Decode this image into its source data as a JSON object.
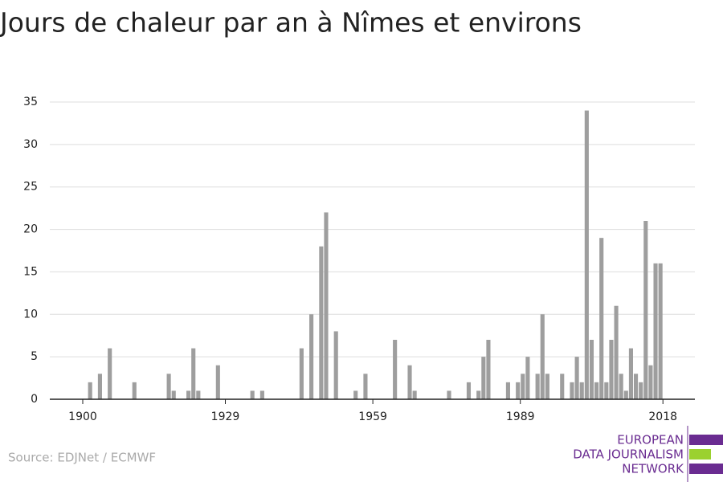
{
  "chart_data": {
    "type": "bar",
    "title": "Jours de chaleur par an à Nîmes et environs",
    "source": "Source: EDJNet / ECMWF",
    "logo": [
      "EUROPEAN",
      "DATA JOURNALISM",
      "NETWORK"
    ],
    "x": [
      1901,
      1903,
      1905,
      1910,
      1917,
      1918,
      1921,
      1922,
      1923,
      1927,
      1934,
      1936,
      1944,
      1946,
      1948,
      1949,
      1951,
      1955,
      1957,
      1963,
      1966,
      1967,
      1974,
      1978,
      1980,
      1981,
      1982,
      1986,
      1988,
      1989,
      1990,
      1992,
      1993,
      1994,
      1997,
      1999,
      2000,
      2001,
      2002,
      2003,
      2004,
      2005,
      2006,
      2007,
      2008,
      2009,
      2010,
      2011,
      2012,
      2013,
      2014,
      2015,
      2016,
      2017
    ],
    "values": [
      2,
      3,
      6,
      2,
      3,
      1,
      1,
      6,
      1,
      4,
      1,
      1,
      6,
      10,
      18,
      22,
      8,
      1,
      3,
      7,
      4,
      1,
      1,
      2,
      1,
      5,
      7,
      2,
      2,
      3,
      5,
      3,
      10,
      3,
      3,
      2,
      5,
      2,
      34,
      7,
      2,
      19,
      2,
      7,
      11,
      3,
      1,
      6,
      3,
      2,
      21,
      4,
      16,
      16
    ],
    "color": "#9e9e9e",
    "xlim": [
      1893.3,
      2024.5
    ],
    "xticks": [
      1900,
      1929,
      1959,
      1989,
      2018
    ],
    "ylim": [
      0,
      35
    ],
    "yticks": [
      0,
      5,
      10,
      15,
      20,
      25,
      30,
      35
    ],
    "grid": true
  }
}
